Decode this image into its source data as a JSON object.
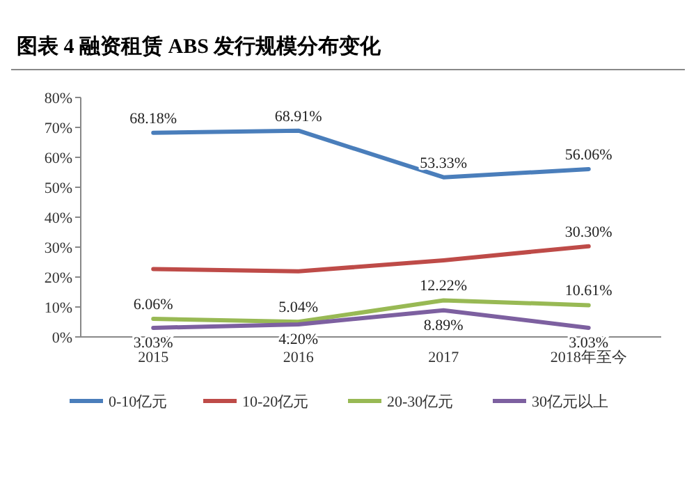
{
  "chart_data": {
    "type": "line",
    "title": "图表 4  融资租赁 ABS 发行规模分布变化",
    "categories": [
      "2015",
      "2016",
      "2017",
      "2018年至今"
    ],
    "ylim": [
      0,
      80
    ],
    "yticks": [
      {
        "value": 0,
        "label": "0%"
      },
      {
        "value": 10,
        "label": "10%"
      },
      {
        "value": 20,
        "label": "20%"
      },
      {
        "value": 30,
        "label": "30%"
      },
      {
        "value": 40,
        "label": "40%"
      },
      {
        "value": 50,
        "label": "50%"
      },
      {
        "value": 60,
        "label": "60%"
      },
      {
        "value": 70,
        "label": "70%"
      },
      {
        "value": 80,
        "label": "80%"
      }
    ],
    "series": [
      {
        "name": "0-10亿元",
        "color": "#4a7ebb",
        "values": [
          68.18,
          68.91,
          53.33,
          56.06
        ],
        "value_labels": [
          "68.18%",
          "68.91%",
          "53.33%",
          "56.06%"
        ]
      },
      {
        "name": "10-20亿元",
        "color": "#be4b48",
        "values": [
          22.7,
          21.9,
          25.6,
          30.3
        ],
        "value_labels": [
          null,
          null,
          null,
          "30.30%"
        ]
      },
      {
        "name": "20-30亿元",
        "color": "#98b954",
        "values": [
          6.06,
          5.04,
          12.22,
          10.61
        ],
        "value_labels": [
          "6.06%",
          "5.04%",
          "12.22%",
          "10.61%"
        ]
      },
      {
        "name": "30亿元以上",
        "color": "#7d60a0",
        "values": [
          3.03,
          4.2,
          8.89,
          3.03
        ],
        "value_labels": [
          "3.03%",
          "4.20%",
          "8.89%",
          "3.03%"
        ]
      }
    ],
    "legend": "bottom",
    "grid": false,
    "marker": "none",
    "line_style": "solid"
  }
}
